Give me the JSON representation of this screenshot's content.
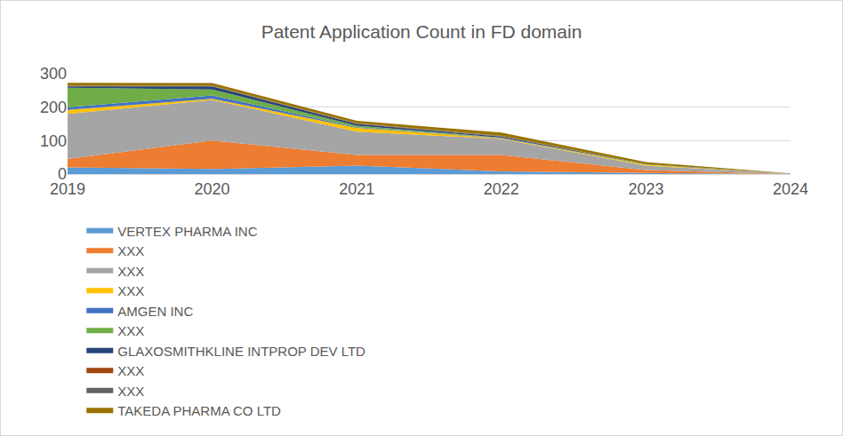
{
  "chart_data": {
    "type": "area",
    "title": "Patent Application Count in FD domain",
    "x": [
      2019,
      2020,
      2021,
      2022,
      2023,
      2024
    ],
    "xlim": [
      2019,
      2024
    ],
    "xticks": [
      2019,
      2020,
      2021,
      2022,
      2023,
      2024
    ],
    "ylim": [
      0,
      300
    ],
    "yticks": [
      0,
      100,
      200,
      300
    ],
    "grid": true,
    "stacked": true,
    "legend": "bottom",
    "series": [
      {
        "name": "VERTEX PHARMA INC",
        "color": "#5B9BD5",
        "values": [
          20,
          15,
          25,
          8,
          3,
          0
        ]
      },
      {
        "name": "XXX",
        "color": "#ED7D31",
        "values": [
          25,
          85,
          32,
          49,
          9,
          0
        ]
      },
      {
        "name": "XXX",
        "color": "#A5A5A5",
        "values": [
          135,
          122,
          70,
          48,
          13,
          1
        ]
      },
      {
        "name": "XXX",
        "color": "#FFC000",
        "values": [
          12,
          3,
          11,
          2,
          3,
          0
        ]
      },
      {
        "name": "AMGEN INC",
        "color": "#4472C4",
        "values": [
          8,
          10,
          2,
          1,
          0,
          0
        ]
      },
      {
        "name": "XXX",
        "color": "#70AD47",
        "values": [
          58,
          18,
          5,
          1,
          1,
          0
        ]
      },
      {
        "name": "GLAXOSMITHKLINE INTPROP DEV LTD",
        "color": "#264478",
        "values": [
          4,
          9,
          5,
          3,
          1,
          0
        ]
      },
      {
        "name": "XXX",
        "color": "#9E480E",
        "values": [
          1,
          1,
          1,
          1,
          0,
          0
        ]
      },
      {
        "name": "XXX",
        "color": "#636363",
        "values": [
          1,
          1,
          1,
          1,
          0,
          0
        ]
      },
      {
        "name": "TAKEDA PHARMA CO LTD",
        "color": "#997300",
        "values": [
          9,
          8,
          7,
          10,
          6,
          1
        ]
      }
    ]
  }
}
